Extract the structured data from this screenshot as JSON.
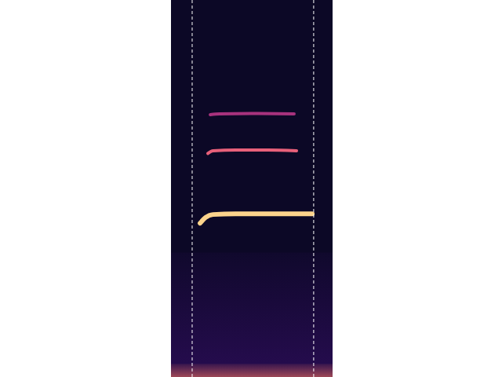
{
  "chart_data": {
    "type": "spectrogram",
    "xlim": [
      0,
      100
    ],
    "ylim": [
      0,
      100
    ],
    "tick_labels": false,
    "grid": false,
    "series": [
      {
        "type": "area",
        "color": "#3b0f70",
        "x": [
          0,
          100
        ],
        "values": [
          33,
          33
        ]
      },
      {
        "type": "area",
        "color": "#f8765c",
        "x": [
          0,
          100
        ],
        "values": [
          3.5,
          3.5
        ]
      },
      {
        "type": "line",
        "color": "#fcd38c",
        "x": [
          18,
          21.4,
          26,
          40,
          60,
          80,
          87.4
        ],
        "values": [
          40.8,
          42.3,
          43.1,
          43.3,
          43.3,
          43.3,
          43.3
        ]
      },
      {
        "type": "line",
        "color": "#e8607a",
        "x": [
          22.8,
          26,
          40,
          60,
          77.7
        ],
        "values": [
          59.3,
          60,
          60.2,
          60.2,
          60
        ]
      },
      {
        "type": "line",
        "color": "#a8327d",
        "x": [
          24.3,
          30,
          50,
          76.2
        ],
        "values": [
          69.6,
          69.8,
          69.9,
          69.8
        ]
      }
    ],
    "reference_lines": [
      {
        "x": 13.1,
        "color": "#ffffff",
        "line_style": "dashed"
      },
      {
        "x": 88.3,
        "color": "#ffffff",
        "line_style": "dashed"
      }
    ]
  }
}
